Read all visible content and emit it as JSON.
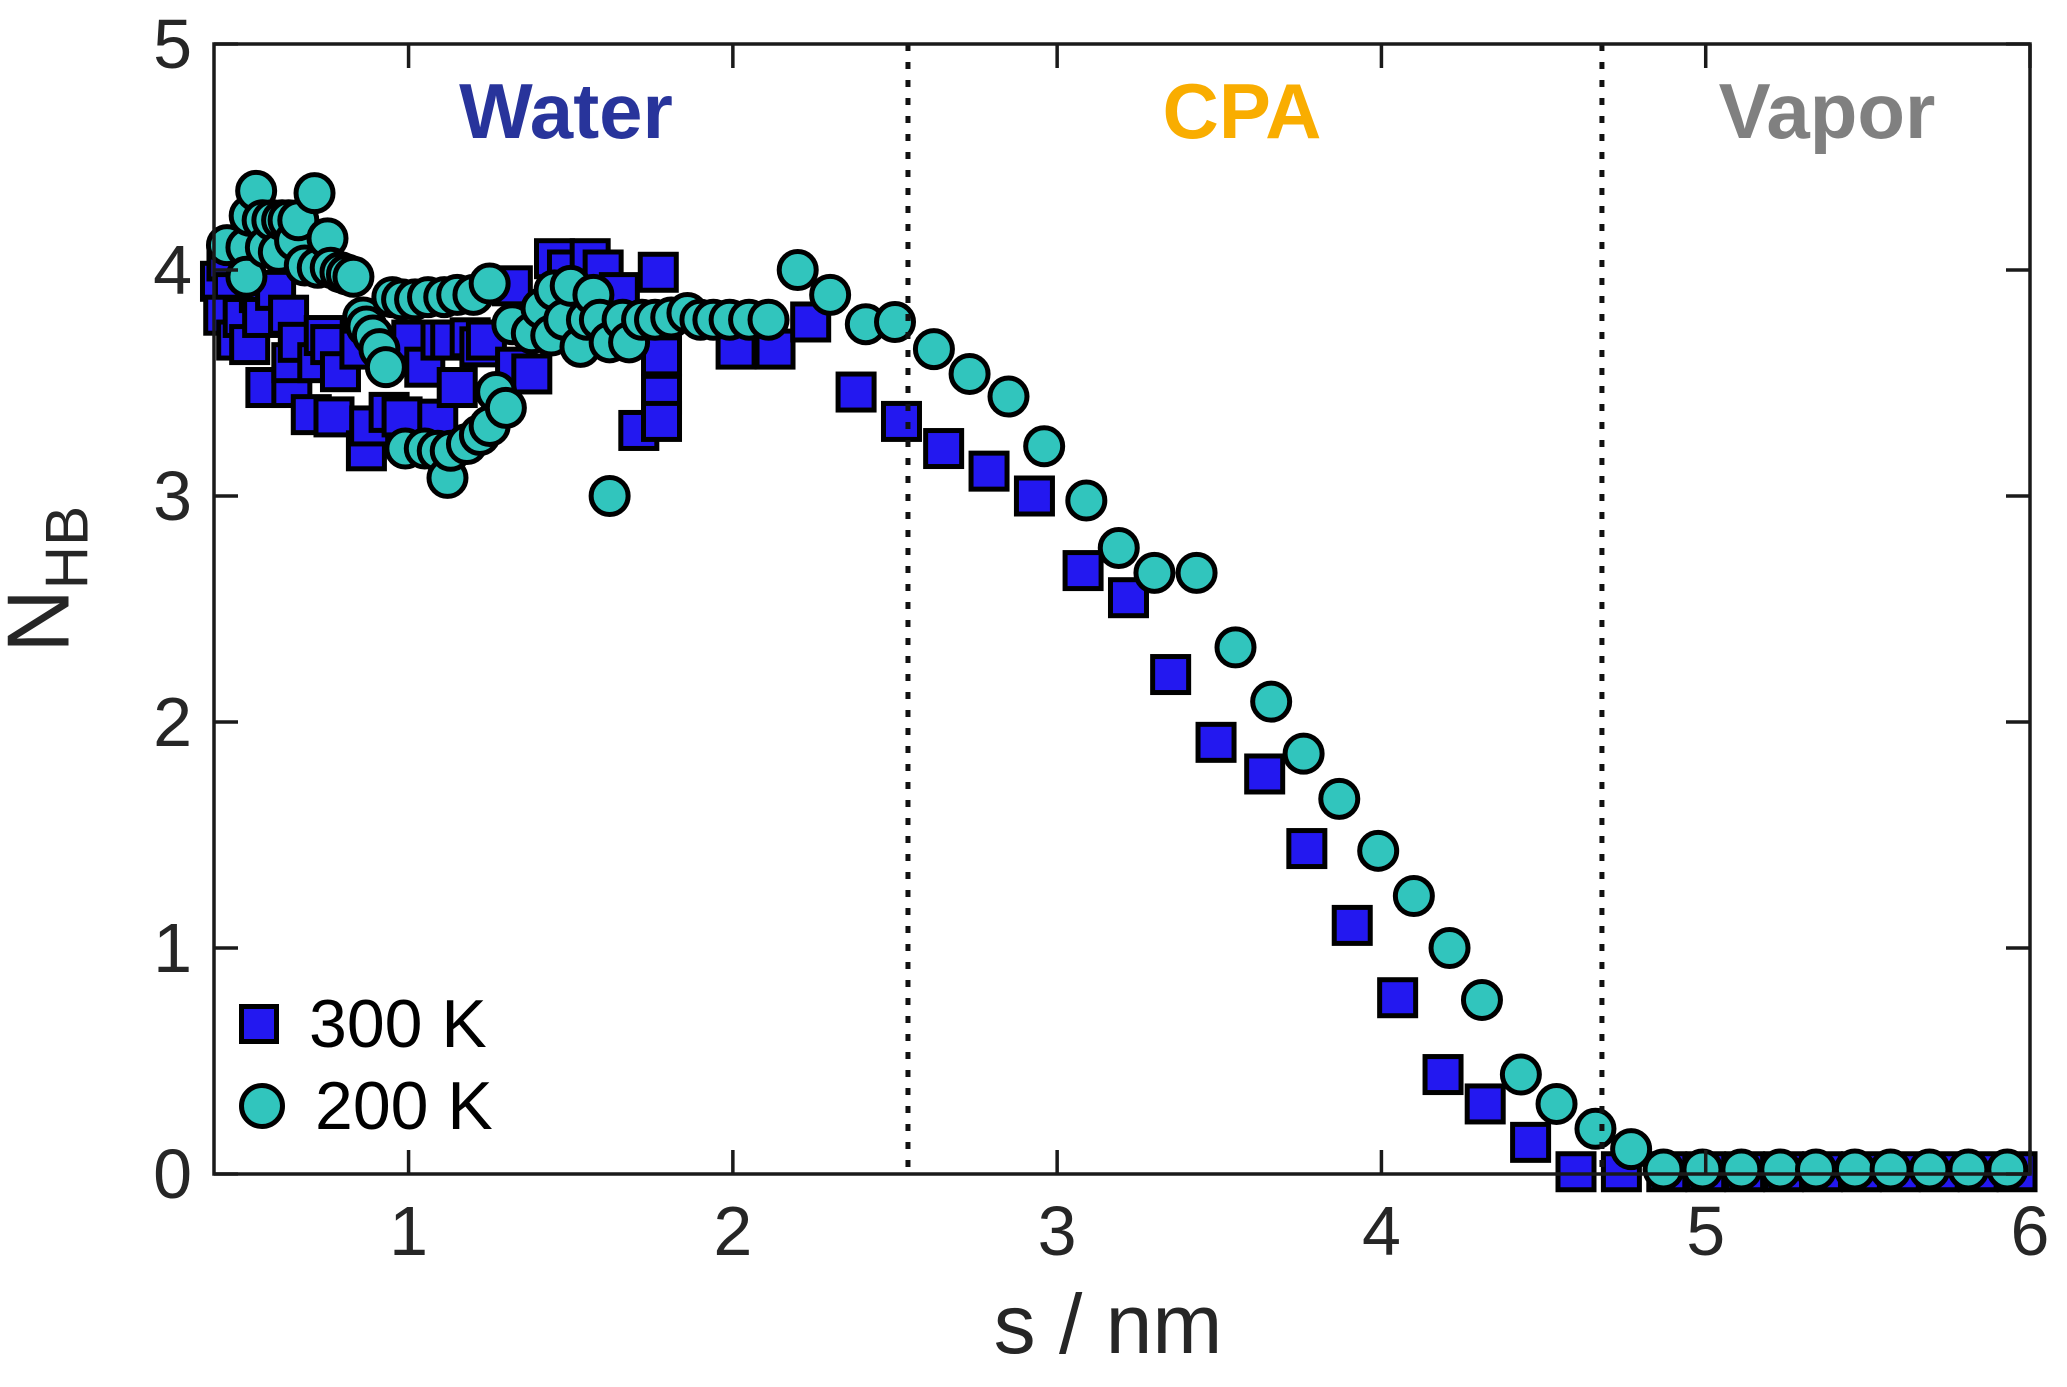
{
  "figure": {
    "background": "#ffffff",
    "axis_color": "#262626",
    "frame_color": "#1a1a1a"
  },
  "regions": [
    {
      "label": "Water",
      "color": "#28349b"
    },
    {
      "label": "CPA",
      "color": "#f9ad00"
    },
    {
      "label": "Vapor",
      "color": "#808080"
    }
  ],
  "x_axis": {
    "label": "s / nm",
    "ticks": [
      "1",
      "2",
      "3",
      "4",
      "5",
      "6"
    ],
    "tick_values": [
      1,
      2,
      3,
      4,
      5,
      6
    ]
  },
  "y_axis": {
    "label_main": "N",
    "label_sub": "HB",
    "ticks": [
      "0",
      "1",
      "2",
      "3",
      "4",
      "5"
    ],
    "tick_values": [
      0,
      1,
      2,
      3,
      4,
      5
    ]
  },
  "legend": [
    {
      "label": "300 K"
    },
    {
      "label": "200 K"
    }
  ],
  "chart_data": {
    "type": "scatter",
    "title": "",
    "xlabel": "s / nm",
    "ylabel": "N_HB",
    "xlim": [
      0.4,
      6.0
    ],
    "ylim": [
      0,
      5
    ],
    "grid": false,
    "legend_position": "lower-left",
    "region_boundaries_x": [
      2.54,
      4.68
    ],
    "series": [
      {
        "name": "300 K",
        "marker": "square",
        "color": "#2318f0",
        "edge": "#000000",
        "points": [
          [
            0.42,
            3.95
          ],
          [
            0.44,
            4.04
          ],
          [
            0.46,
            3.9
          ],
          [
            0.43,
            3.8
          ],
          [
            0.47,
            3.69
          ],
          [
            0.49,
            3.79
          ],
          [
            0.51,
            3.67
          ],
          [
            0.54,
            3.9
          ],
          [
            0.55,
            3.79
          ],
          [
            0.56,
            3.48
          ],
          [
            0.59,
            3.91
          ],
          [
            0.63,
            3.8
          ],
          [
            0.64,
            3.48
          ],
          [
            0.64,
            3.59
          ],
          [
            0.66,
            3.68
          ],
          [
            0.7,
            3.36
          ],
          [
            0.72,
            3.59
          ],
          [
            0.74,
            3.71
          ],
          [
            0.76,
            3.67
          ],
          [
            0.77,
            3.35
          ],
          [
            0.79,
            3.55
          ],
          [
            0.85,
            3.65
          ],
          [
            0.87,
            3.2
          ],
          [
            0.88,
            3.31
          ],
          [
            0.94,
            3.37
          ],
          [
            0.98,
            3.35
          ],
          [
            1.01,
            3.69
          ],
          [
            1.05,
            3.57
          ],
          [
            1.09,
            3.34
          ],
          [
            1.1,
            3.69
          ],
          [
            1.13,
            3.69
          ],
          [
            1.15,
            3.48
          ],
          [
            1.19,
            3.7
          ],
          [
            1.22,
            3.66
          ],
          [
            1.24,
            3.69
          ],
          [
            1.32,
            3.93
          ],
          [
            1.33,
            3.57
          ],
          [
            1.38,
            3.54
          ],
          [
            1.45,
            4.05
          ],
          [
            1.49,
            4.0
          ],
          [
            1.56,
            4.05
          ],
          [
            1.6,
            4.0
          ],
          [
            1.65,
            3.9
          ],
          [
            1.71,
            3.29
          ],
          [
            1.77,
            3.99
          ],
          [
            1.78,
            3.62
          ],
          [
            1.78,
            3.45
          ],
          [
            1.78,
            3.33
          ],
          [
            2.01,
            3.65
          ],
          [
            2.13,
            3.65
          ],
          [
            2.24,
            3.77
          ],
          [
            2.38,
            3.46
          ],
          [
            2.52,
            3.33
          ],
          [
            2.65,
            3.21
          ],
          [
            2.79,
            3.11
          ],
          [
            2.93,
            3.0
          ],
          [
            3.08,
            2.67
          ],
          [
            3.22,
            2.55
          ],
          [
            3.35,
            2.21
          ],
          [
            3.49,
            1.91
          ],
          [
            3.64,
            1.77
          ],
          [
            3.77,
            1.44
          ],
          [
            3.91,
            1.1
          ],
          [
            4.05,
            0.78
          ],
          [
            4.19,
            0.44
          ],
          [
            4.32,
            0.31
          ],
          [
            4.46,
            0.14
          ],
          [
            4.6,
            0.01
          ],
          [
            4.74,
            0.01
          ],
          [
            4.88,
            0.01
          ],
          [
            5.0,
            0.01
          ],
          [
            5.12,
            0.01
          ],
          [
            5.24,
            0.01
          ],
          [
            5.36,
            0.01
          ],
          [
            5.48,
            0.01
          ],
          [
            5.6,
            0.01
          ],
          [
            5.72,
            0.01
          ],
          [
            5.84,
            0.01
          ],
          [
            5.96,
            0.01
          ]
        ]
      },
      {
        "name": "200 K",
        "marker": "circle",
        "color": "#31c5bd",
        "edge": "#000000",
        "points": [
          [
            0.44,
            4.11
          ],
          [
            0.5,
            4.1
          ],
          [
            0.5,
            3.97
          ],
          [
            0.51,
            4.24
          ],
          [
            0.53,
            4.35
          ],
          [
            0.55,
            4.22
          ],
          [
            0.56,
            4.1
          ],
          [
            0.58,
            4.22
          ],
          [
            0.6,
            4.08
          ],
          [
            0.61,
            4.22
          ],
          [
            0.63,
            4.22
          ],
          [
            0.65,
            4.13
          ],
          [
            0.66,
            4.22
          ],
          [
            0.68,
            4.02
          ],
          [
            0.71,
            4.34
          ],
          [
            0.72,
            4.01
          ],
          [
            0.75,
            4.14
          ],
          [
            0.76,
            4.01
          ],
          [
            0.79,
            3.99
          ],
          [
            0.81,
            3.98
          ],
          [
            0.83,
            3.97
          ],
          [
            0.86,
            3.79
          ],
          [
            0.87,
            3.75
          ],
          [
            0.89,
            3.71
          ],
          [
            0.91,
            3.65
          ],
          [
            0.93,
            3.57
          ],
          [
            0.95,
            3.88
          ],
          [
            0.98,
            3.87
          ],
          [
            0.99,
            3.21
          ],
          [
            1.02,
            3.87
          ],
          [
            1.05,
            3.21
          ],
          [
            1.06,
            3.88
          ],
          [
            1.09,
            3.2
          ],
          [
            1.11,
            3.88
          ],
          [
            1.12,
            3.08
          ],
          [
            1.13,
            3.2
          ],
          [
            1.15,
            3.89
          ],
          [
            1.18,
            3.23
          ],
          [
            1.2,
            3.89
          ],
          [
            1.22,
            3.27
          ],
          [
            1.25,
            3.31
          ],
          [
            1.25,
            3.94
          ],
          [
            1.27,
            3.46
          ],
          [
            1.3,
            3.39
          ],
          [
            1.32,
            3.76
          ],
          [
            1.38,
            3.72
          ],
          [
            1.41,
            3.83
          ],
          [
            1.44,
            3.71
          ],
          [
            1.45,
            3.91
          ],
          [
            1.48,
            3.78
          ],
          [
            1.5,
            3.93
          ],
          [
            1.53,
            3.66
          ],
          [
            1.55,
            3.78
          ],
          [
            1.57,
            3.89
          ],
          [
            1.59,
            3.78
          ],
          [
            1.62,
            3.68
          ],
          [
            1.62,
            3.0
          ],
          [
            1.66,
            3.78
          ],
          [
            1.68,
            3.68
          ],
          [
            1.72,
            3.78
          ],
          [
            1.76,
            3.78
          ],
          [
            1.81,
            3.79
          ],
          [
            1.86,
            3.81
          ],
          [
            1.9,
            3.78
          ],
          [
            1.94,
            3.78
          ],
          [
            1.99,
            3.78
          ],
          [
            2.05,
            3.78
          ],
          [
            2.11,
            3.78
          ],
          [
            2.2,
            4.0
          ],
          [
            2.3,
            3.89
          ],
          [
            2.41,
            3.76
          ],
          [
            2.5,
            3.77
          ],
          [
            2.62,
            3.65
          ],
          [
            2.73,
            3.54
          ],
          [
            2.85,
            3.44
          ],
          [
            2.96,
            3.22
          ],
          [
            3.09,
            2.98
          ],
          [
            3.19,
            2.77
          ],
          [
            3.3,
            2.66
          ],
          [
            3.43,
            2.66
          ],
          [
            3.55,
            2.33
          ],
          [
            3.66,
            2.09
          ],
          [
            3.76,
            1.86
          ],
          [
            3.87,
            1.66
          ],
          [
            3.99,
            1.43
          ],
          [
            4.1,
            1.23
          ],
          [
            4.21,
            1.0
          ],
          [
            4.31,
            0.77
          ],
          [
            4.43,
            0.44
          ],
          [
            4.54,
            0.31
          ],
          [
            4.66,
            0.2
          ],
          [
            4.77,
            0.11
          ],
          [
            4.87,
            0.02
          ],
          [
            4.99,
            0.02
          ],
          [
            5.11,
            0.02
          ],
          [
            5.23,
            0.02
          ],
          [
            5.34,
            0.02
          ],
          [
            5.46,
            0.02
          ],
          [
            5.57,
            0.02
          ],
          [
            5.69,
            0.02
          ],
          [
            5.81,
            0.02
          ],
          [
            5.93,
            0.02
          ]
        ]
      }
    ]
  }
}
